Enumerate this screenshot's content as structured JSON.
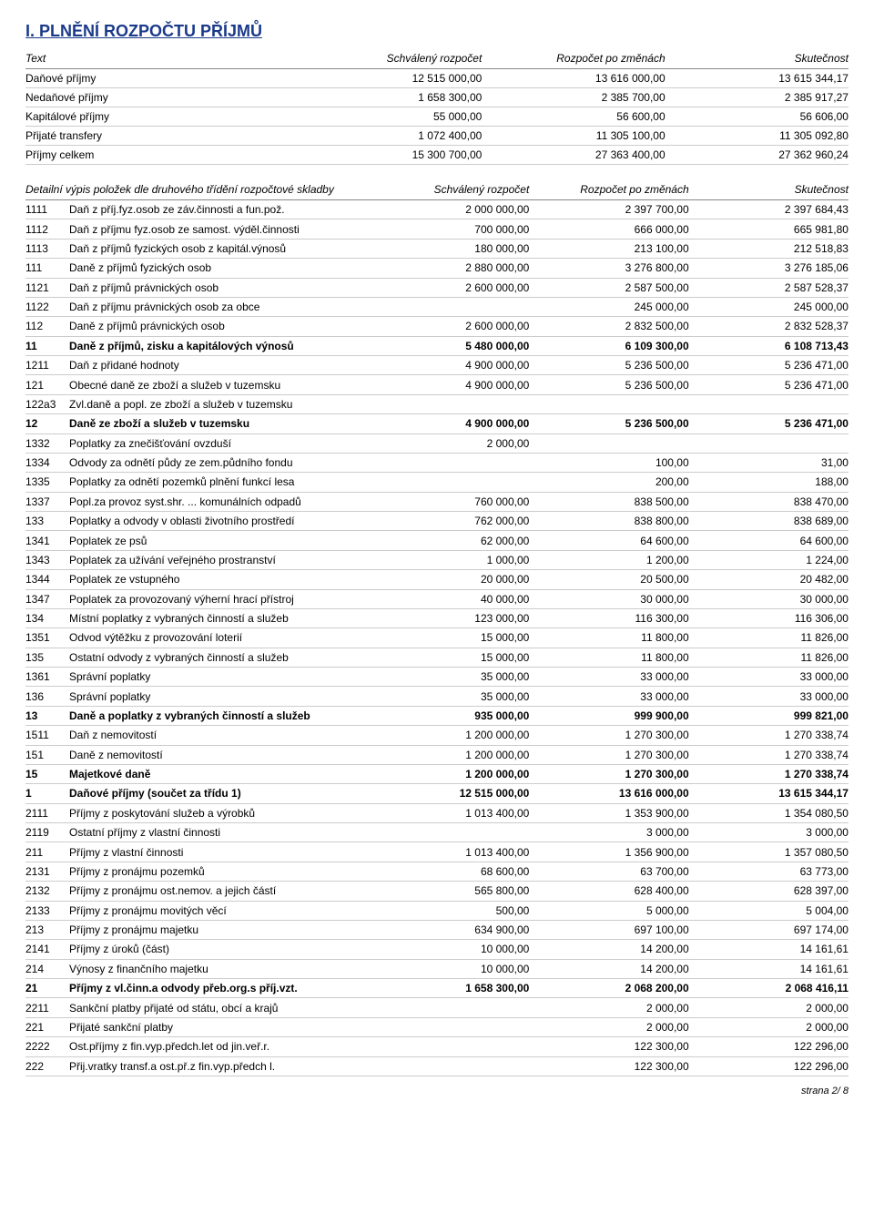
{
  "title": "I. PLNĚNÍ ROZPOČTU PŘÍJMŮ",
  "summary_headers": {
    "text": "Text",
    "c1": "Schválený rozpočet",
    "c2": "Rozpočet po změnách",
    "c3": "Skutečnost"
  },
  "summary_rows": [
    {
      "label": "Daňové příjmy",
      "c1": "12 515 000,00",
      "c2": "13 616 000,00",
      "c3": "13 615 344,17"
    },
    {
      "label": "Nedaňové příjmy",
      "c1": "1 658 300,00",
      "c2": "2 385 700,00",
      "c3": "2 385 917,27"
    },
    {
      "label": "Kapitálové příjmy",
      "c1": "55 000,00",
      "c2": "56 600,00",
      "c3": "56 606,00"
    },
    {
      "label": "Přijaté transfery",
      "c1": "1 072 400,00",
      "c2": "11 305 100,00",
      "c3": "11 305 092,80"
    },
    {
      "label": "Příjmy celkem",
      "c1": "15 300 700,00",
      "c2": "27 363 400,00",
      "c3": "27 362 960,24"
    }
  ],
  "detail_headers": {
    "text": "Detailní výpis položek dle druhového třídění rozpočtové skladby",
    "c1": "Schválený rozpočet",
    "c2": "Rozpočet po změnách",
    "c3": "Skutečnost"
  },
  "detail_rows": [
    {
      "code": "1111",
      "desc": "Daň z příj.fyz.osob ze záv.činnosti a fun.pož.",
      "c1": "2 000 000,00",
      "c2": "2 397 700,00",
      "c3": "2 397 684,43"
    },
    {
      "code": "1112",
      "desc": "Daň z příjmu fyz.osob ze samost. výděl.činnosti",
      "c1": "700 000,00",
      "c2": "666 000,00",
      "c3": "665 981,80"
    },
    {
      "code": "1113",
      "desc": "Daň z příjmů fyzických osob z kapitál.výnosů",
      "c1": "180 000,00",
      "c2": "213 100,00",
      "c3": "212 518,83"
    },
    {
      "code": "111",
      "desc": "Daně z příjmů fyzických osob",
      "c1": "2 880 000,00",
      "c2": "3 276 800,00",
      "c3": "3 276 185,06"
    },
    {
      "code": "1121",
      "desc": "Daň z příjmů právnických osob",
      "c1": "2 600 000,00",
      "c2": "2 587 500,00",
      "c3": "2 587 528,37"
    },
    {
      "code": "1122",
      "desc": "Daň z příjmu právnických osob za obce",
      "c1": "",
      "c2": "245 000,00",
      "c3": "245 000,00"
    },
    {
      "code": "112",
      "desc": "Daně z příjmů právnických osob",
      "c1": "2 600 000,00",
      "c2": "2 832 500,00",
      "c3": "2 832 528,37"
    },
    {
      "code": "11",
      "desc": "Daně z příjmů, zisku a kapitálových výnosů",
      "c1": "5 480 000,00",
      "c2": "6 109 300,00",
      "c3": "6 108 713,43",
      "bold": true
    },
    {
      "code": "1211",
      "desc": "Daň z přidané hodnoty",
      "c1": "4 900 000,00",
      "c2": "5 236 500,00",
      "c3": "5 236 471,00"
    },
    {
      "code": "121",
      "desc": "Obecné daně ze zboží a služeb v tuzemsku",
      "c1": "4 900 000,00",
      "c2": "5 236 500,00",
      "c3": "5 236 471,00"
    },
    {
      "code": "122a3",
      "desc": "Zvl.daně a popl. ze zboží a služeb v tuzemsku",
      "c1": "",
      "c2": "",
      "c3": ""
    },
    {
      "code": "12",
      "desc": "Daně ze zboží a služeb v tuzemsku",
      "c1": "4 900 000,00",
      "c2": "5 236 500,00",
      "c3": "5 236 471,00",
      "bold": true
    },
    {
      "code": "1332",
      "desc": "Poplatky za znečišťování ovzduší",
      "c1": "2 000,00",
      "c2": "",
      "c3": ""
    },
    {
      "code": "1334",
      "desc": "Odvody za odnětí půdy ze zem.půdního fondu",
      "c1": "",
      "c2": "100,00",
      "c3": "31,00"
    },
    {
      "code": "1335",
      "desc": "Poplatky za odnětí pozemků plnění funkcí lesa",
      "c1": "",
      "c2": "200,00",
      "c3": "188,00"
    },
    {
      "code": "1337",
      "desc": "Popl.za provoz syst.shr. ... komunálních odpadů",
      "c1": "760 000,00",
      "c2": "838 500,00",
      "c3": "838 470,00"
    },
    {
      "code": "133",
      "desc": "Poplatky a odvody v oblasti životního prostředí",
      "c1": "762 000,00",
      "c2": "838 800,00",
      "c3": "838 689,00"
    },
    {
      "code": "1341",
      "desc": "Poplatek ze psů",
      "c1": "62 000,00",
      "c2": "64 600,00",
      "c3": "64 600,00"
    },
    {
      "code": "1343",
      "desc": "Poplatek za užívání veřejného prostranství",
      "c1": "1 000,00",
      "c2": "1 200,00",
      "c3": "1 224,00"
    },
    {
      "code": "1344",
      "desc": "Poplatek ze vstupného",
      "c1": "20 000,00",
      "c2": "20 500,00",
      "c3": "20 482,00"
    },
    {
      "code": "1347",
      "desc": "Poplatek za provozovaný výherní hrací přístroj",
      "c1": "40 000,00",
      "c2": "30 000,00",
      "c3": "30 000,00"
    },
    {
      "code": "134",
      "desc": "Místní poplatky z vybraných činností a služeb",
      "c1": "123 000,00",
      "c2": "116 300,00",
      "c3": "116 306,00"
    },
    {
      "code": "1351",
      "desc": "Odvod výtěžku z provozování loterií",
      "c1": "15 000,00",
      "c2": "11 800,00",
      "c3": "11 826,00"
    },
    {
      "code": "135",
      "desc": "Ostatní odvody z vybraných činností a služeb",
      "c1": "15 000,00",
      "c2": "11 800,00",
      "c3": "11 826,00"
    },
    {
      "code": "1361",
      "desc": "Správní poplatky",
      "c1": "35 000,00",
      "c2": "33 000,00",
      "c3": "33 000,00"
    },
    {
      "code": "136",
      "desc": "Správní poplatky",
      "c1": "35 000,00",
      "c2": "33 000,00",
      "c3": "33 000,00"
    },
    {
      "code": "13",
      "desc": "Daně a poplatky z vybraných činností a služeb",
      "c1": "935 000,00",
      "c2": "999 900,00",
      "c3": "999 821,00",
      "bold": true
    },
    {
      "code": "1511",
      "desc": "Daň z nemovitostí",
      "c1": "1 200 000,00",
      "c2": "1 270 300,00",
      "c3": "1 270 338,74"
    },
    {
      "code": "151",
      "desc": "Daně z nemovitostí",
      "c1": "1 200 000,00",
      "c2": "1 270 300,00",
      "c3": "1 270 338,74"
    },
    {
      "code": "15",
      "desc": "Majetkové daně",
      "c1": "1 200 000,00",
      "c2": "1 270 300,00",
      "c3": "1 270 338,74",
      "bold": true
    },
    {
      "code": "1",
      "desc": "Daňové příjmy (součet za třídu 1)",
      "c1": "12 515 000,00",
      "c2": "13 616 000,00",
      "c3": "13 615 344,17",
      "bold": true
    },
    {
      "code": "2111",
      "desc": "Příjmy z poskytování služeb a výrobků",
      "c1": "1 013 400,00",
      "c2": "1 353 900,00",
      "c3": "1 354 080,50"
    },
    {
      "code": "2119",
      "desc": "Ostatní příjmy z vlastní činnosti",
      "c1": "",
      "c2": "3 000,00",
      "c3": "3 000,00"
    },
    {
      "code": " 211",
      "desc": "Příjmy z vlastní činnosti",
      "c1": "1 013 400,00",
      "c2": "1 356 900,00",
      "c3": "1 357 080,50"
    },
    {
      "code": "2131",
      "desc": "Příjmy z pronájmu pozemků",
      "c1": "68 600,00",
      "c2": "63 700,00",
      "c3": "63 773,00"
    },
    {
      "code": "2132",
      "desc": "Příjmy z pronájmu ost.nemov. a jejich částí",
      "c1": "565 800,00",
      "c2": "628 400,00",
      "c3": "628 397,00"
    },
    {
      "code": "2133",
      "desc": "Příjmy z pronájmu movitých věcí",
      "c1": "500,00",
      "c2": "5 000,00",
      "c3": "5 004,00"
    },
    {
      "code": " 213",
      "desc": "Příjmy z pronájmu majetku",
      "c1": "634 900,00",
      "c2": "697 100,00",
      "c3": "697 174,00"
    },
    {
      "code": "2141",
      "desc": "Příjmy z úroků (část)",
      "c1": "10 000,00",
      "c2": "14 200,00",
      "c3": "14 161,61"
    },
    {
      "code": " 214",
      "desc": "Výnosy z finančního majetku",
      "c1": "10 000,00",
      "c2": "14 200,00",
      "c3": "14 161,61"
    },
    {
      "code": "21",
      "desc": "Příjmy z vl.činn.a odvody přeb.org.s příj.vzt.",
      "c1": "1 658 300,00",
      "c2": "2 068 200,00",
      "c3": "2 068 416,11",
      "bold": true
    },
    {
      "code": "2211",
      "desc": "Sankční platby přijaté od státu, obcí a krajů",
      "c1": "",
      "c2": "2 000,00",
      "c3": "2 000,00"
    },
    {
      "code": " 221",
      "desc": "Přijaté sankční platby",
      "c1": "",
      "c2": "2 000,00",
      "c3": "2 000,00"
    },
    {
      "code": "2222",
      "desc": "Ost.příjmy z fin.vyp.předch.let od jin.veř.r.",
      "c1": "",
      "c2": "122 300,00",
      "c3": "122 296,00"
    },
    {
      "code": " 222",
      "desc": "Přij.vratky transf.a ost.př.z fin.vyp.předch l.",
      "c1": "",
      "c2": "122 300,00",
      "c3": "122 296,00"
    }
  ],
  "footer": "strana 2/ 8"
}
